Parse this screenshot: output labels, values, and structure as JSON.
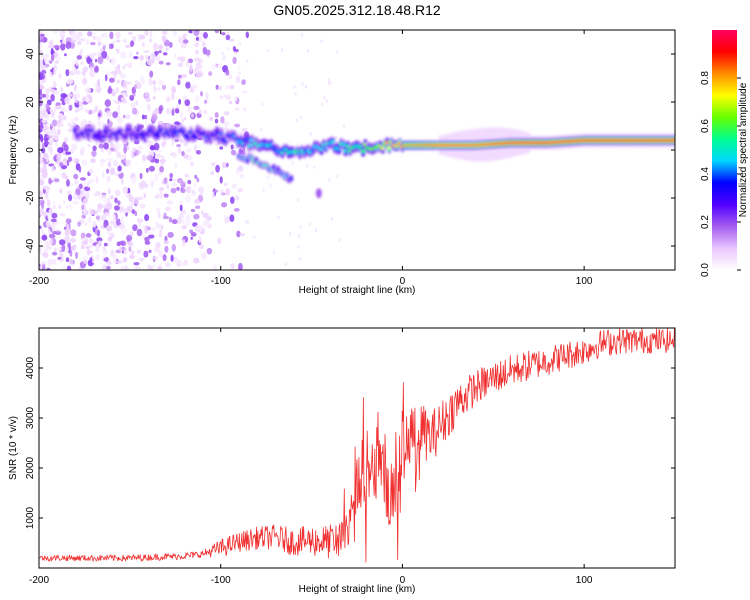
{
  "title": "GN05.2025.312.18.48.R12",
  "chart_data": [
    {
      "type": "heatmap",
      "name": "spectrogram",
      "xlabel": "Height of straight line (km)",
      "ylabel": "Frequency (Hz)",
      "xlim": [
        -200,
        150
      ],
      "ylim": [
        -50,
        50
      ],
      "xticks": [
        -200,
        -100,
        0,
        100
      ],
      "yticks": [
        -40,
        -20,
        0,
        20,
        40
      ],
      "colorbar": {
        "label": "Normalized spectral amplitude",
        "range": [
          0,
          1
        ],
        "ticks": [
          "0.0",
          "0.2",
          "0.4",
          "0.6",
          "0.8"
        ],
        "tick_values": [
          0,
          0.2,
          0.4,
          0.6,
          0.8
        ],
        "colors": [
          "#ffffff",
          "#e9c6ff",
          "#a45cf0",
          "#5000ff",
          "#0000ff",
          "#00d8ff",
          "#00ff90",
          "#66ff00",
          "#ffff00",
          "#ff8c00",
          "#ff0000",
          "#ff0060"
        ]
      },
      "ridge": {
        "height_km": [
          -180,
          -150,
          -120,
          -100,
          -90,
          -80,
          -70,
          -60,
          -50,
          -40,
          -30,
          -20,
          -10,
          0,
          10,
          20,
          40,
          60,
          80,
          100,
          150
        ],
        "frequency_hz": [
          7,
          7,
          7,
          6,
          4,
          3,
          1,
          -1,
          0,
          2,
          1,
          1,
          2,
          2,
          2,
          2,
          2,
          3,
          3,
          4,
          4
        ],
        "amplitude": [
          0.3,
          0.32,
          0.35,
          0.35,
          0.4,
          0.45,
          0.45,
          0.5,
          0.45,
          0.45,
          0.5,
          0.6,
          0.7,
          0.8,
          0.85,
          0.9,
          0.9,
          0.95,
          0.95,
          0.95,
          0.95
        ]
      },
      "secondary_track": {
        "height_km": [
          -90,
          -80,
          -70,
          -60
        ],
        "frequency_hz": [
          -2,
          -5,
          -8,
          -13
        ]
      },
      "noise_region_km": [
        -200,
        -100
      ]
    },
    {
      "type": "line",
      "name": "snr",
      "xlabel": "Height of straight line (km)",
      "ylabel": "SNR (10 * v/v)",
      "xlim": [
        -200,
        150
      ],
      "ylim": [
        0,
        4800
      ],
      "xticks": [
        -200,
        -100,
        0,
        100
      ],
      "yticks": [
        1000,
        2000,
        3000,
        4000
      ],
      "color": "#f03030",
      "envelope": {
        "height_km": [
          -200,
          -150,
          -120,
          -110,
          -100,
          -90,
          -80,
          -70,
          -60,
          -50,
          -40,
          -30,
          -25,
          -20,
          -15,
          -10,
          -5,
          0,
          5,
          10,
          15,
          20,
          30,
          40,
          50,
          60,
          70,
          80,
          90,
          100,
          110,
          120,
          130,
          140,
          150
        ],
        "snr": [
          200,
          200,
          240,
          280,
          400,
          520,
          600,
          620,
          520,
          550,
          520,
          700,
          1700,
          2200,
          2300,
          1700,
          1500,
          2300,
          2700,
          2800,
          2600,
          2800,
          3300,
          3600,
          3800,
          3950,
          4050,
          4150,
          4250,
          4350,
          4500,
          4550,
          4550,
          4550,
          4550
        ]
      },
      "noise_amplitude": {
        "height_km": [
          -200,
          -110,
          -100,
          -60,
          -40,
          -30,
          -20,
          -10,
          0,
          20,
          40,
          80,
          150
        ],
        "amplitude": [
          60,
          70,
          180,
          280,
          350,
          400,
          900,
          800,
          600,
          500,
          350,
          300,
          250
        ]
      }
    }
  ]
}
